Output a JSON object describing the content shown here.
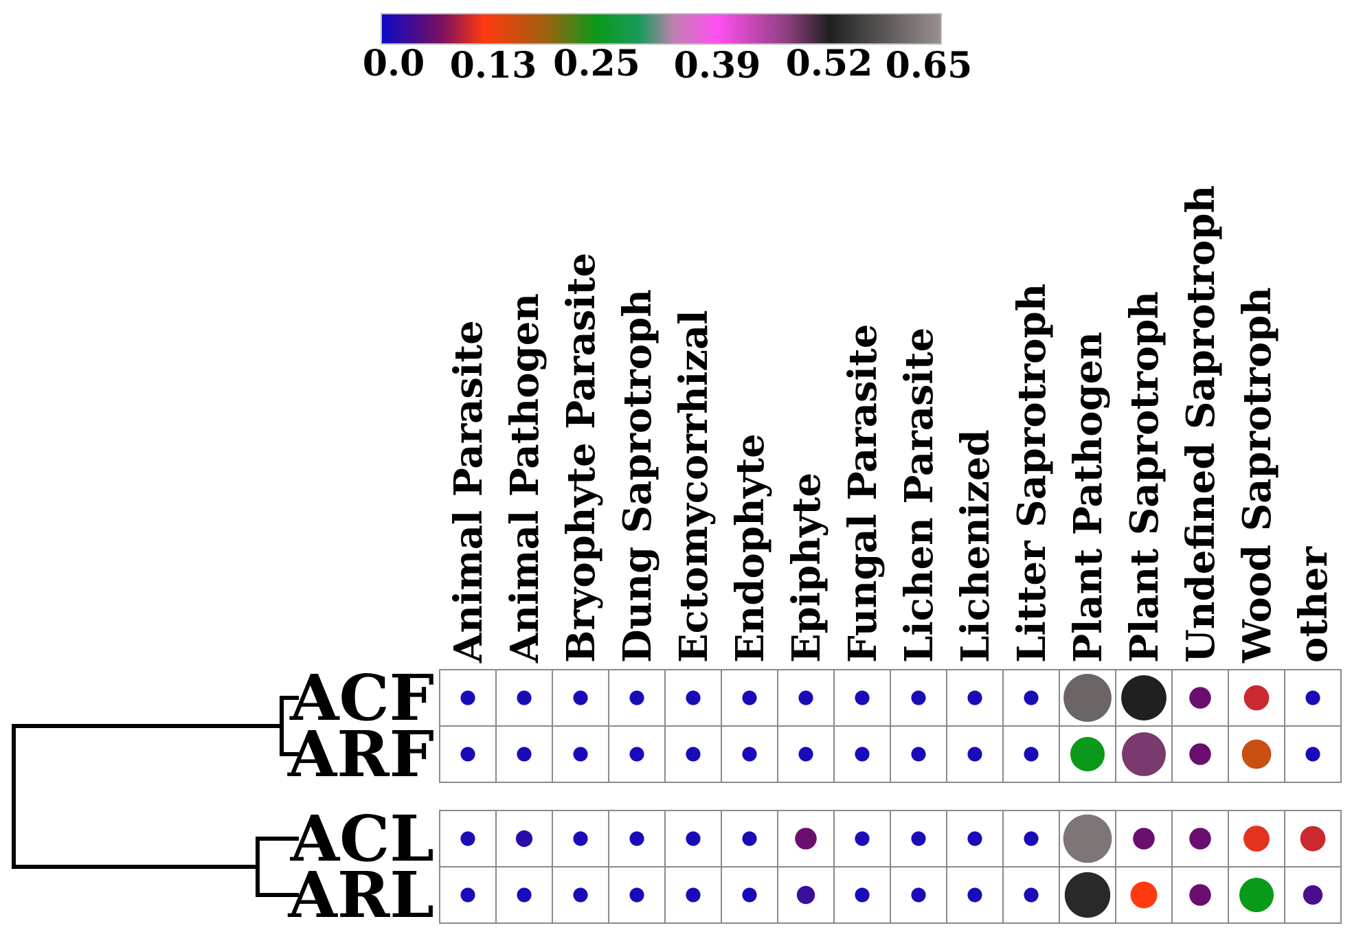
{
  "chart_data": {
    "type": "heatmap",
    "title": "",
    "xlabel": "",
    "ylabel": "",
    "colorbar": {
      "range": [
        0.0,
        0.65
      ],
      "tick_labels": [
        "0.0",
        "0.13",
        "0.25",
        "0.39",
        "0.52",
        "0.65"
      ],
      "tick_values": [
        0.0,
        0.13,
        0.25,
        0.39,
        0.52,
        0.65
      ],
      "stops": [
        {
          "value": 0.0,
          "color": "#0a0ac8"
        },
        {
          "value": 0.07,
          "color": "#7a1060"
        },
        {
          "value": 0.12,
          "color": "#ff3a10"
        },
        {
          "value": 0.19,
          "color": "#a06010"
        },
        {
          "value": 0.25,
          "color": "#0a9a1a"
        },
        {
          "value": 0.3,
          "color": "#1a9a5a"
        },
        {
          "value": 0.34,
          "color": "#c080b0"
        },
        {
          "value": 0.39,
          "color": "#ff50f0"
        },
        {
          "value": 0.47,
          "color": "#904080"
        },
        {
          "value": 0.52,
          "color": "#202020"
        },
        {
          "value": 0.65,
          "color": "#9a9090"
        }
      ]
    },
    "columns": [
      "Animal Parasite",
      "Animal Pathogen",
      "Bryophyte Parasite",
      "Dung Saprotroph",
      "Ectomycorrhizal",
      "Endophyte",
      "Epiphyte",
      "Fungal Parasite",
      "Lichen Parasite",
      "Lichenized",
      "Litter Saprotroph",
      "Plant Pathogen",
      "Plant Saprotroph",
      "Undefined Saprotroph",
      "Wood Saprotroph",
      "other"
    ],
    "rows": [
      "ACF",
      "ARF",
      "ACL",
      "ARL"
    ],
    "groups": [
      [
        "ACF",
        "ARF"
      ],
      [
        "ACL",
        "ARL"
      ]
    ],
    "dendrogram": "((ACF,ARF),(ACL,ARL))",
    "values": [
      [
        0.01,
        0.01,
        0.01,
        0.01,
        0.01,
        0.01,
        0.01,
        0.01,
        0.01,
        0.01,
        0.01,
        0.6,
        0.52,
        0.06,
        0.1,
        0.01
      ],
      [
        0.01,
        0.01,
        0.01,
        0.01,
        0.01,
        0.01,
        0.01,
        0.01,
        0.01,
        0.01,
        0.01,
        0.25,
        0.48,
        0.06,
        0.16,
        0.01
      ],
      [
        0.01,
        0.02,
        0.01,
        0.01,
        0.01,
        0.01,
        0.06,
        0.01,
        0.01,
        0.01,
        0.01,
        0.62,
        0.06,
        0.06,
        0.11,
        0.1
      ],
      [
        0.01,
        0.01,
        0.01,
        0.01,
        0.01,
        0.01,
        0.03,
        0.01,
        0.01,
        0.01,
        0.01,
        0.53,
        0.12,
        0.06,
        0.25,
        0.04
      ]
    ]
  }
}
